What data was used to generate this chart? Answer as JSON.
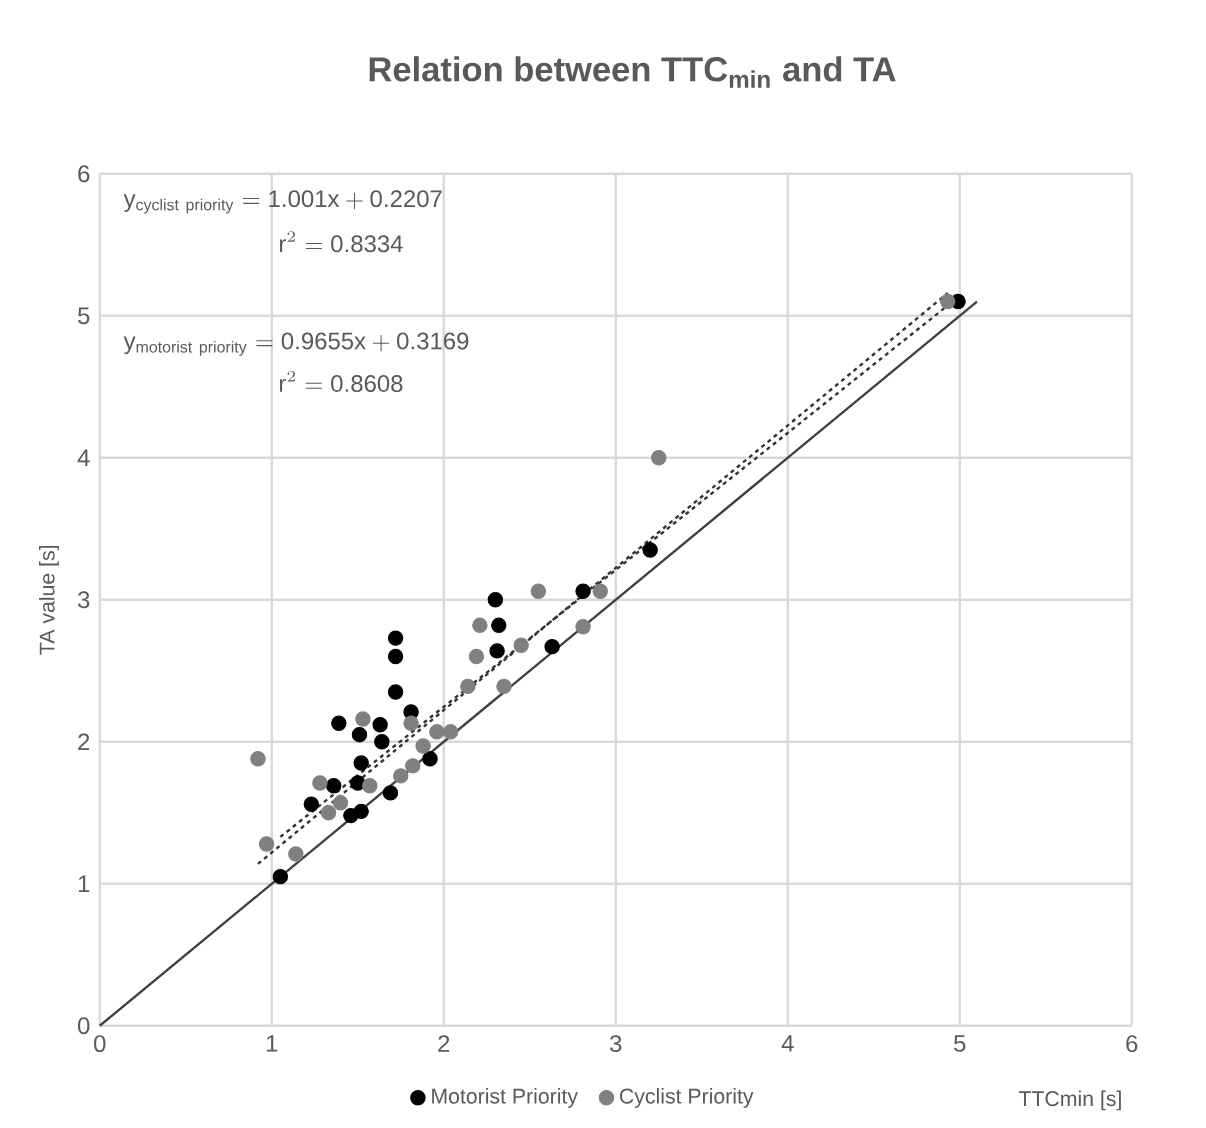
{
  "chart_data": {
    "type": "scatter",
    "title": "Relation between TTC$_{min}$ and TA",
    "xlabel": "TTCmin [s]",
    "ylabel": "TA value [s]",
    "xlim": [
      0,
      6
    ],
    "ylim": [
      0,
      6
    ],
    "xticks": [
      0,
      1,
      2,
      3,
      4,
      5,
      6
    ],
    "yticks": [
      0,
      1,
      2,
      3,
      4,
      5,
      6
    ],
    "grid": true,
    "legend": "bottom",
    "annotations": [
      "\\mathrm{y}_{\\mathrm{cyclist\\ priority}} = \\mathrm{1.001x + 0.2207}",
      "\\mathrm{r}^{2} = \\mathrm{0.8334}",
      "\\mathrm{y}_{\\mathrm{motorist\\ priority}} = \\mathrm{0.9655x + 0.3169}",
      "\\mathrm{r}^{2} = \\mathrm{0.8608}"
    ],
    "series": [
      {
        "name": "Motorist Priority",
        "color": "#000000",
        "x": [
          1.05,
          1.72,
          1.72,
          1.72,
          1.39,
          1.51,
          1.63,
          1.52,
          1.5,
          1.23,
          1.36,
          1.46,
          1.52,
          1.69,
          1.64,
          1.81,
          1.92,
          2.3,
          2.32,
          2.31,
          2.63,
          2.81,
          3.2,
          4.99
        ],
        "values": [
          1.05,
          2.73,
          2.6,
          2.35,
          2.13,
          2.05,
          2.12,
          1.85,
          1.71,
          1.56,
          1.69,
          1.48,
          1.51,
          1.64,
          2.0,
          2.21,
          1.88,
          3.0,
          2.82,
          2.64,
          2.67,
          3.06,
          3.35,
          5.1
        ]
      },
      {
        "name": "Cyclist Priority",
        "color": "#808080",
        "x": [
          0.92,
          0.97,
          1.14,
          1.28,
          1.33,
          1.4,
          1.57,
          1.53,
          1.75,
          1.81,
          1.88,
          1.96,
          2.04,
          1.82,
          2.14,
          2.19,
          2.21,
          2.35,
          2.45,
          2.55,
          2.81,
          2.91,
          3.25,
          4.93
        ],
        "values": [
          1.88,
          1.28,
          1.21,
          1.71,
          1.5,
          1.57,
          1.69,
          2.16,
          1.76,
          2.13,
          1.97,
          2.07,
          2.07,
          1.83,
          2.39,
          2.6,
          2.82,
          2.39,
          2.68,
          3.06,
          2.81,
          3.06,
          4.0,
          5.1
        ]
      },
      {
        "type": "line",
        "color": "#333333",
        "line_style": "dotted",
        "x": [
          0.92,
          4.93
        ],
        "values": [
          1.14,
          5.16
        ]
      },
      {
        "type": "line",
        "color": "#333333",
        "line_style": "dotted",
        "x": [
          1.05,
          4.99
        ],
        "values": [
          1.33,
          5.13
        ]
      },
      {
        "type": "line",
        "color": "#404040",
        "line_style": "solid",
        "x": [
          0,
          5.1
        ],
        "values": [
          0,
          5.1
        ]
      }
    ]
  }
}
